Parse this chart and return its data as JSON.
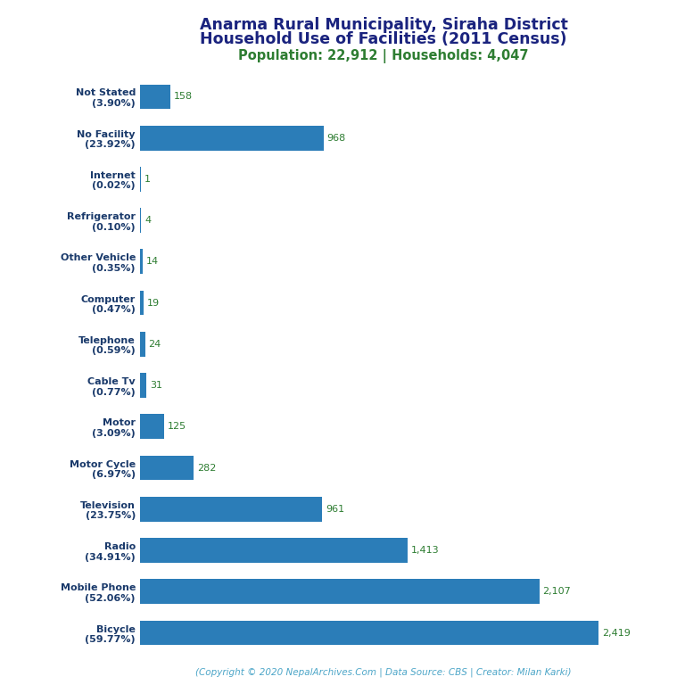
{
  "title_line1": "Anarma Rural Municipality, Siraha District",
  "title_line2": "Household Use of Facilities (2011 Census)",
  "subtitle": "Population: 22,912 | Households: 4,047",
  "footer": "(Copyright © 2020 NepalArchives.Com | Data Source: CBS | Creator: Milan Karki)",
  "categories": [
    "Not Stated\n(3.90%)",
    "No Facility\n(23.92%)",
    "Internet\n(0.02%)",
    "Refrigerator\n(0.10%)",
    "Other Vehicle\n(0.35%)",
    "Computer\n(0.47%)",
    "Telephone\n(0.59%)",
    "Cable Tv\n(0.77%)",
    "Motor\n(3.09%)",
    "Motor Cycle\n(6.97%)",
    "Television\n(23.75%)",
    "Radio\n(34.91%)",
    "Mobile Phone\n(52.06%)",
    "Bicycle\n(59.77%)"
  ],
  "values": [
    158,
    968,
    1,
    4,
    14,
    19,
    24,
    31,
    125,
    282,
    961,
    1413,
    2107,
    2419
  ],
  "value_labels": [
    "158",
    "968",
    "1",
    "4",
    "14",
    "19",
    "24",
    "31",
    "125",
    "282",
    "961",
    "1,413",
    "2,107",
    "2,419"
  ],
  "bar_color": "#2b7db8",
  "title_color": "#1a237e",
  "subtitle_color": "#2e7d32",
  "value_color": "#2e7d32",
  "footer_color": "#4da6c8",
  "label_color": "#1a3a6b",
  "background_color": "#ffffff",
  "figsize": [
    7.68,
    7.68
  ],
  "dpi": 100,
  "xlim": 2750
}
